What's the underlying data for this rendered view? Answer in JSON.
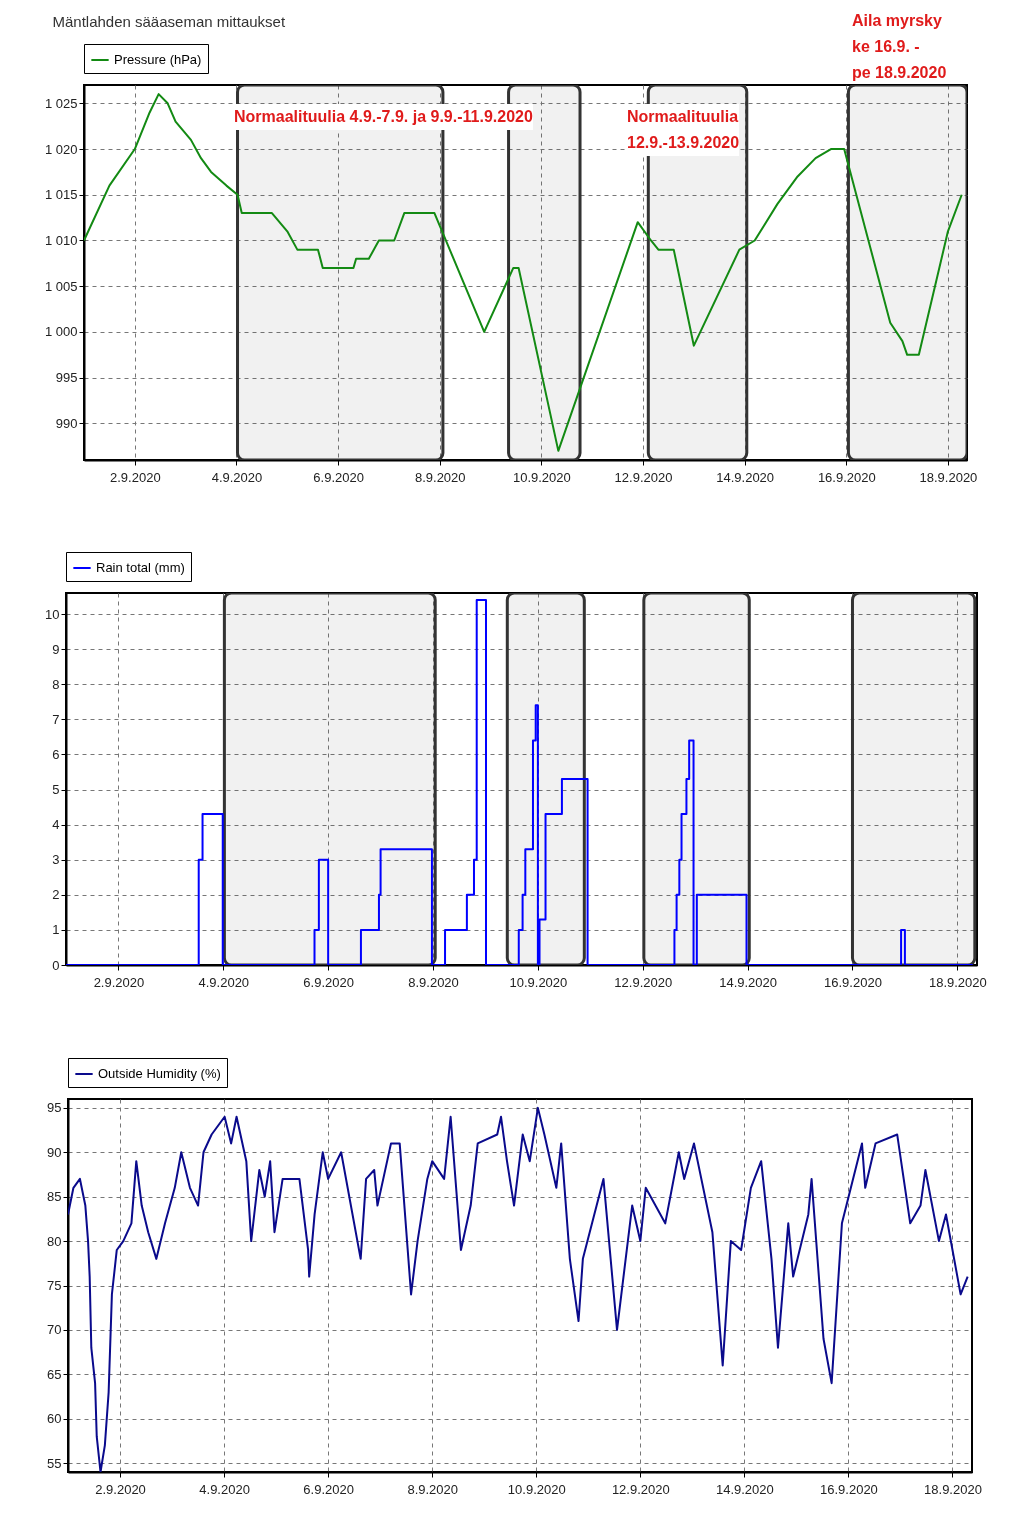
{
  "chart_data": [
    {
      "type": "line",
      "title": "Mäntlahden sääaseman mittaukset",
      "legend": "top",
      "grid": true,
      "annotations": [
        "Normaalituulia 4.9.-7.9. ja 9.9.-11.9.2020",
        "Normaalituulia\n12.9.-13.9.2020",
        "Aila myrsky\nke 16.9. -\npe 18.9.2020"
      ],
      "xlim": [
        "2020-09-01T00:00",
        "2020-09-18T09:00"
      ],
      "xticks": [
        {
          "value": "2020-09-02",
          "label": "2.9.2020"
        },
        {
          "value": "2020-09-04",
          "label": "4.9.2020"
        },
        {
          "value": "2020-09-06",
          "label": "6.9.2020"
        },
        {
          "value": "2020-09-08",
          "label": "8.9.2020"
        },
        {
          "value": "2020-09-10",
          "label": "10.9.2020"
        },
        {
          "value": "2020-09-12",
          "label": "12.9.2020"
        },
        {
          "value": "2020-09-14",
          "label": "14.9.2020"
        },
        {
          "value": "2020-09-16",
          "label": "16.9.2020"
        },
        {
          "value": "2020-09-18",
          "label": "18.9.2020"
        }
      ],
      "ylim": [
        986,
        1027
      ],
      "yticks": [
        990,
        995,
        {
          "value": 1000,
          "label": "1 000"
        },
        {
          "value": 1005,
          "label": "1 005"
        },
        {
          "value": 1010,
          "label": "1 010"
        },
        {
          "value": 1015,
          "label": "1 015"
        },
        {
          "value": 1020,
          "label": "1 020"
        },
        {
          "value": 1025,
          "label": "1 025"
        }
      ],
      "bands": [
        {
          "axis": "x",
          "from": "2020-09-04T00:30",
          "to": "2020-09-08T01:30",
          "color": "#333333"
        },
        {
          "axis": "x",
          "from": "2020-09-09T08:30",
          "to": "2020-09-10T18:15",
          "color": "#333333"
        },
        {
          "axis": "x",
          "from": "2020-09-12T02:30",
          "to": "2020-09-14T01:00",
          "color": "#333333"
        },
        {
          "axis": "x",
          "from": "2020-09-16T01:00",
          "to": "2020-09-18T09:00",
          "color": "#333333"
        }
      ],
      "x": [
        "2020-09-01T00:00",
        "2020-09-01T12:00",
        "2020-09-02T00:00",
        "2020-09-02T07:00",
        "2020-09-02T11:15",
        "2020-09-02T15:30",
        "2020-09-02T19:15",
        "2020-09-03T02:30",
        "2020-09-03T07:15",
        "2020-09-03T12:00",
        "2020-09-03T19:15",
        "2020-09-04T00:30",
        "2020-09-04T02:30",
        "2020-09-04T16:45",
        "2020-09-05T00:00",
        "2020-09-05T04:45",
        "2020-09-05T14:30",
        "2020-09-05T16:45",
        "2020-09-06T07:15",
        "2020-09-06T08:30",
        "2020-09-06T14:30",
        "2020-09-06T19:15",
        "2020-09-07T02:30",
        "2020-09-07T07:15",
        "2020-09-07T21:30",
        "2020-09-08T21:00",
        "2020-09-09T10:45",
        "2020-09-09T13:15",
        "2020-09-10T08:00",
        "2020-09-11T21:30",
        "2020-09-12T03:45",
        "2020-09-12T07:15",
        "2020-09-12T14:30",
        "2020-09-13T00:00",
        "2020-09-13T21:30",
        "2020-09-14T04:45",
        "2020-09-14T15:30",
        "2020-09-15T01:00",
        "2020-09-15T09:30",
        "2020-09-15T16:45",
        "2020-09-15T23:00",
        "2020-09-16T20:45",
        "2020-09-17T02:30",
        "2020-09-17T04:45",
        "2020-09-17T10:15",
        "2020-09-18T00:00",
        "2020-09-18T06:30"
      ],
      "series": [
        {
          "name": "Pressure (hPa)",
          "color": "#138a13",
          "values": [
            1010,
            1016,
            1020,
            1024,
            1026,
            1025,
            1023,
            1021,
            1019,
            1017.5,
            1016,
            1015,
            1013,
            1013,
            1011,
            1009,
            1009,
            1007,
            1007,
            1008,
            1008,
            1010,
            1010,
            1013,
            1013,
            1000,
            1007,
            1007,
            987,
            1012,
            1010,
            1009,
            1009,
            998.5,
            1009,
            1010,
            1014,
            1017,
            1019,
            1020,
            1020,
            1001,
            999,
            997.5,
            997.5,
            1011,
            1015
          ]
        }
      ]
    },
    {
      "type": "step",
      "legend": "top",
      "grid": true,
      "xlim": [
        "2020-09-01T00:00",
        "2020-09-18T09:00"
      ],
      "xticks": [
        {
          "value": "2020-09-02",
          "label": "2.9.2020"
        },
        {
          "value": "2020-09-04",
          "label": "4.9.2020"
        },
        {
          "value": "2020-09-06",
          "label": "6.9.2020"
        },
        {
          "value": "2020-09-08",
          "label": "8.9.2020"
        },
        {
          "value": "2020-09-10",
          "label": "10.9.2020"
        },
        {
          "value": "2020-09-12",
          "label": "12.9.2020"
        },
        {
          "value": "2020-09-14",
          "label": "14.9.2020"
        },
        {
          "value": "2020-09-16",
          "label": "16.9.2020"
        },
        {
          "value": "2020-09-18",
          "label": "18.9.2020"
        }
      ],
      "ylim": [
        0,
        10.6
      ],
      "yticks": [
        0,
        1,
        2,
        3,
        4,
        5,
        6,
        7,
        8,
        9,
        10
      ],
      "bands": [
        {
          "axis": "x",
          "from": "2020-09-04T00:30",
          "to": "2020-09-08T01:00",
          "color": "#333333"
        },
        {
          "axis": "x",
          "from": "2020-09-09T10:00",
          "to": "2020-09-10T21:15",
          "color": "#333333"
        },
        {
          "axis": "x",
          "from": "2020-09-12T00:30",
          "to": "2020-09-14T00:45",
          "color": "#333333"
        },
        {
          "axis": "x",
          "from": "2020-09-16T00:00",
          "to": "2020-09-18T08:00",
          "color": "#333333"
        }
      ],
      "x": [
        "2020-09-01T00:00",
        "2020-09-03T12:45",
        "2020-09-03T14:30",
        "2020-09-03T23:45",
        "2020-09-05T17:45",
        "2020-09-05T19:45",
        "2020-09-06T00:00",
        "2020-09-06T15:00",
        "2020-09-06T23:15",
        "2020-09-07T00:00",
        "2020-09-07T23:30",
        "2020-09-08T05:30",
        "2020-09-08T15:30",
        "2020-09-08T18:45",
        "2020-09-08T20:00",
        "2020-09-09T00:15",
        "2020-09-09T15:15",
        "2020-09-09T17:00",
        "2020-09-09T18:15",
        "2020-09-09T21:45",
        "2020-09-09T23:00",
        "2020-09-10T00:00",
        "2020-09-10T00:45",
        "2020-09-10T03:30",
        "2020-09-10T11:00",
        "2020-09-10T22:45",
        "2020-09-12T14:30",
        "2020-09-12T15:30",
        "2020-09-12T16:45",
        "2020-09-12T17:45",
        "2020-09-12T20:00",
        "2020-09-12T21:15",
        "2020-09-12T23:15",
        "2020-09-13T00:45",
        "2020-09-13T23:30",
        "2020-09-16T22:15",
        "2020-09-17T00:00",
        "2020-09-18T07:00"
      ],
      "series": [
        {
          "name": "Rain total (mm)",
          "color": "#0000ff",
          "values": [
            0,
            3,
            4.3,
            0,
            1,
            3,
            0,
            1,
            2,
            3.3,
            0,
            1,
            2,
            3,
            10.4,
            0,
            1,
            2,
            3.3,
            6.4,
            7.4,
            0,
            1.3,
            4.3,
            5.3,
            0,
            1,
            2,
            3,
            4.3,
            5.3,
            6.4,
            0,
            2,
            0,
            1,
            0,
            0
          ]
        }
      ]
    },
    {
      "type": "line",
      "legend": "top",
      "grid": true,
      "xlim": [
        "2020-09-01T00:00",
        "2020-09-18T09:00"
      ],
      "xticks": [
        {
          "value": "2020-09-02",
          "label": "2.9.2020"
        },
        {
          "value": "2020-09-04",
          "label": "4.9.2020"
        },
        {
          "value": "2020-09-06",
          "label": "6.9.2020"
        },
        {
          "value": "2020-09-08",
          "label": "8.9.2020"
        },
        {
          "value": "2020-09-10",
          "label": "10.9.2020"
        },
        {
          "value": "2020-09-12",
          "label": "12.9.2020"
        },
        {
          "value": "2020-09-14",
          "label": "14.9.2020"
        },
        {
          "value": "2020-09-16",
          "label": "16.9.2020"
        },
        {
          "value": "2020-09-18",
          "label": "18.9.2020"
        }
      ],
      "ylim": [
        54,
        96
      ],
      "yticks": [
        55,
        60,
        65,
        70,
        75,
        80,
        85,
        90,
        95
      ],
      "x": [
        "2020-09-01T00:00",
        "2020-09-01T02:30",
        "2020-09-01T05:30",
        "2020-09-01T08:00",
        "2020-09-01T09:15",
        "2020-09-01T10:00",
        "2020-09-01T10:45",
        "2020-09-01T12:30",
        "2020-09-01T13:15",
        "2020-09-01T15:00",
        "2020-09-01T17:00",
        "2020-09-01T18:45",
        "2020-09-01T20:15",
        "2020-09-01T22:30",
        "2020-09-02T01:30",
        "2020-09-02T05:15",
        "2020-09-02T07:30",
        "2020-09-02T10:00",
        "2020-09-02T13:00",
        "2020-09-02T16:45",
        "2020-09-02T20:45",
        "2020-09-03T01:15",
        "2020-09-03T04:15",
        "2020-09-03T08:15",
        "2020-09-03T12:00",
        "2020-09-03T14:30",
        "2020-09-03T18:15",
        "2020-09-04T00:15",
        "2020-09-04T03:15",
        "2020-09-04T05:45",
        "2020-09-04T10:15",
        "2020-09-04T12:30",
        "2020-09-04T16:15",
        "2020-09-04T18:45",
        "2020-09-04T21:15",
        "2020-09-04T23:15",
        "2020-09-05T03:00",
        "2020-09-05T10:45",
        "2020-09-05T14:45",
        "2020-09-05T15:15",
        "2020-09-05T17:45",
        "2020-09-05T21:30",
        "2020-09-06T00:00",
        "2020-09-06T06:00",
        "2020-09-06T15:00",
        "2020-09-06T17:30",
        "2020-09-06T21:15",
        "2020-09-06T22:45",
        "2020-09-07T05:00",
        "2020-09-07T09:00",
        "2020-09-07T14:15",
        "2020-09-07T17:15",
        "2020-09-07T21:45",
        "2020-09-08T00:00",
        "2020-09-08T05:30",
        "2020-09-08T08:30",
        "2020-09-08T13:15",
        "2020-09-08T17:45",
        "2020-09-08T21:00",
        "2020-09-09T06:00",
        "2020-09-09T07:45",
        "2020-09-09T10:30",
        "2020-09-09T13:45",
        "2020-09-09T17:45",
        "2020-09-09T21:00",
        "2020-09-10T00:45",
        "2020-09-10T03:45",
        "2020-09-10T09:15",
        "2020-09-10T11:30",
        "2020-09-10T15:30",
        "2020-09-10T19:30",
        "2020-09-10T21:30",
        "2020-09-11T07:00",
        "2020-09-11T13:15",
        "2020-09-11T20:15",
        "2020-09-12T00:00",
        "2020-09-12T02:30",
        "2020-09-12T11:30",
        "2020-09-12T17:45",
        "2020-09-12T20:15",
        "2020-09-13T00:45",
        "2020-09-13T09:15",
        "2020-09-13T14:00",
        "2020-09-13T17:45",
        "2020-09-13T22:30",
        "2020-09-14T03:00",
        "2020-09-14T07:45",
        "2020-09-14T12:30",
        "2020-09-14T15:30",
        "2020-09-14T20:15",
        "2020-09-14T22:30",
        "2020-09-15T05:30",
        "2020-09-15T07:00",
        "2020-09-15T12:30",
        "2020-09-15T16:15",
        "2020-09-15T21:00",
        "2020-09-16T06:15",
        "2020-09-16T07:45",
        "2020-09-16T12:30",
        "2020-09-16T22:30",
        "2020-09-17T04:30",
        "2020-09-17T09:15",
        "2020-09-17T11:30",
        "2020-09-17T17:45",
        "2020-09-17T21:00",
        "2020-09-18T03:45",
        "2020-09-18T07:00"
      ],
      "series": [
        {
          "name": "Outside Humidity (%)",
          "color": "#0a0a8c",
          "values": [
            83,
            86,
            87,
            84,
            80,
            76,
            68,
            64,
            58,
            54,
            57,
            63,
            74,
            79,
            80,
            82,
            89,
            84,
            81,
            78,
            82,
            86,
            90,
            86,
            84,
            90,
            92,
            94,
            91,
            94,
            89,
            80,
            88,
            85,
            89,
            81,
            87,
            87,
            79,
            76,
            83,
            90,
            87,
            90,
            78,
            87,
            88,
            84,
            91,
            91,
            74,
            80,
            87,
            89,
            87,
            94,
            79,
            84,
            91,
            92,
            94,
            89,
            84,
            92,
            89,
            95,
            92,
            86,
            91,
            78,
            71,
            78,
            87,
            70,
            84,
            80,
            86,
            82,
            90,
            87,
            91,
            81,
            66,
            80,
            79,
            86,
            89,
            78,
            68,
            82,
            76,
            83,
            87,
            69,
            64,
            82,
            91,
            86,
            91,
            92,
            82,
            84,
            88,
            80,
            83,
            74,
            76
          ]
        }
      ]
    }
  ]
}
